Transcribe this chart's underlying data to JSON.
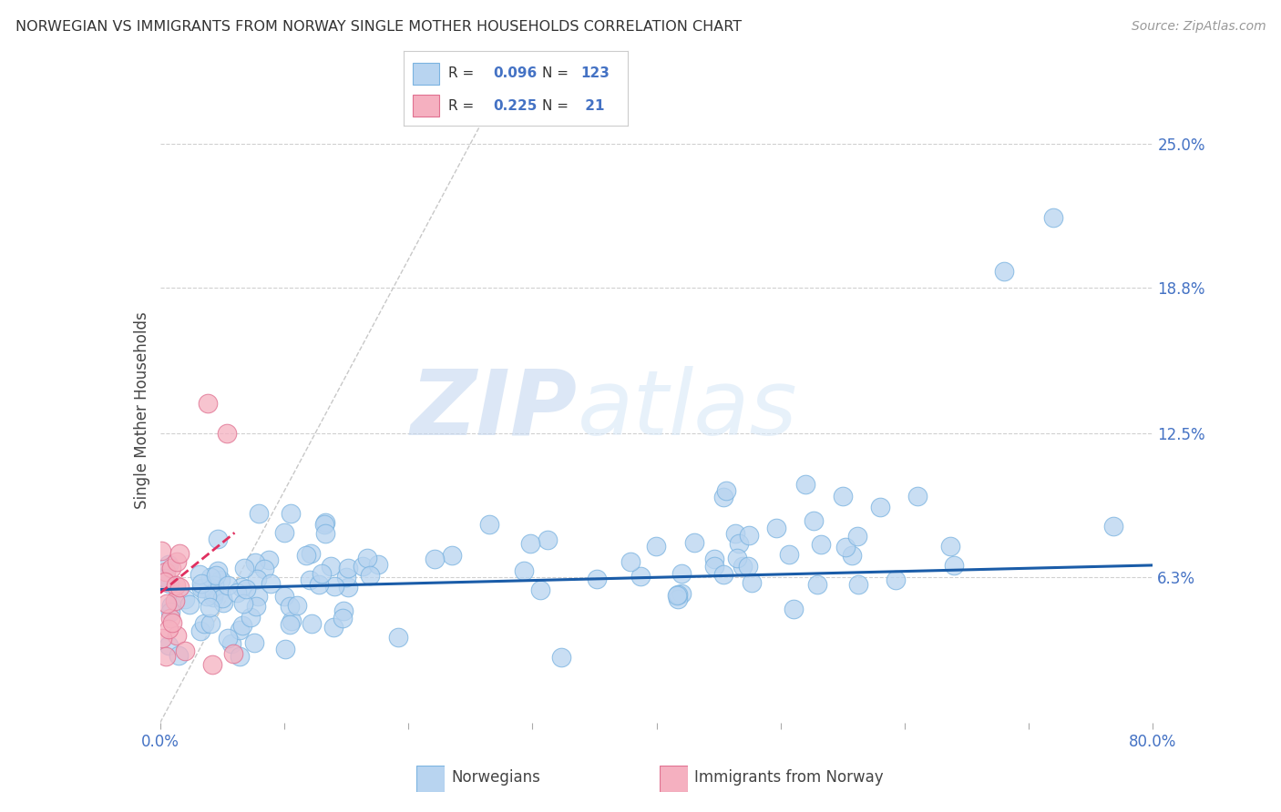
{
  "title": "NORWEGIAN VS IMMIGRANTS FROM NORWAY SINGLE MOTHER HOUSEHOLDS CORRELATION CHART",
  "source": "Source: ZipAtlas.com",
  "ylabel": "Single Mother Households",
  "xlim": [
    0.0,
    0.8
  ],
  "ylim": [
    0.0,
    0.27
  ],
  "yticks_right": [
    0.063,
    0.125,
    0.188,
    0.25
  ],
  "yticklabels_right": [
    "6.3%",
    "12.5%",
    "18.8%",
    "25.0%"
  ],
  "dot_color_blue_face": "#b8d4f0",
  "dot_color_blue_edge": "#7ab3e0",
  "dot_color_pink_face": "#f5b0c0",
  "dot_color_pink_edge": "#e07090",
  "trend_color_blue": "#1a5ca8",
  "trend_color_pink": "#e03060",
  "watermark_zip": "ZIP",
  "watermark_atlas": "atlas",
  "title_fontsize": 12,
  "tick_fontsize": 12,
  "legend_R1": "0.096",
  "legend_N1": "123",
  "legend_R2": "0.225",
  "legend_N2": "21"
}
